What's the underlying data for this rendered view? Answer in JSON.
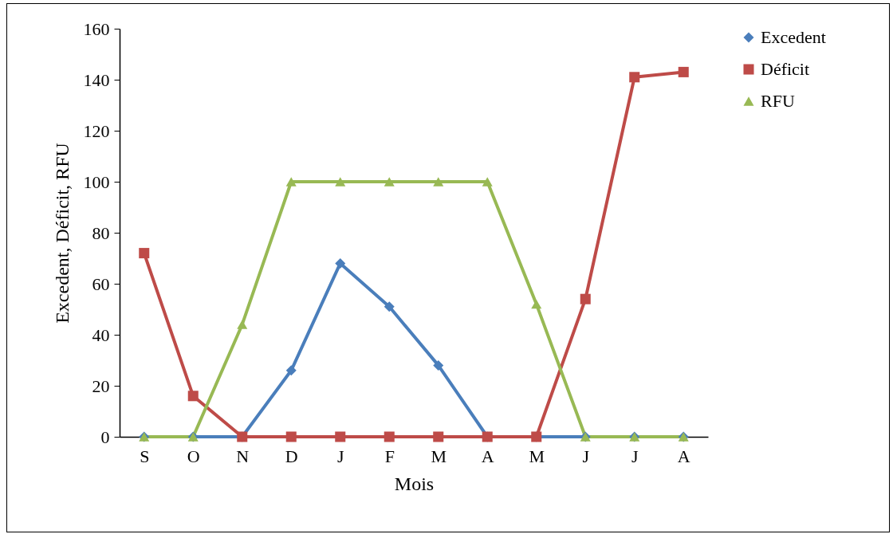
{
  "chart_data": {
    "type": "line",
    "xlabel": "Mois",
    "ylabel": "Excedent, Déficit, RFU",
    "categories": [
      "S",
      "O",
      "N",
      "D",
      "J",
      "F",
      "M",
      "A",
      "M",
      "J",
      "J",
      "A"
    ],
    "ylim": [
      0,
      160
    ],
    "yticks": [
      0,
      20,
      40,
      60,
      80,
      100,
      120,
      140,
      160
    ],
    "grid": false,
    "legend": "right",
    "line_style": "solid",
    "series": [
      {
        "name": "Excedent",
        "color": "#4a7ebb",
        "marker": "diamond",
        "values": [
          0,
          0,
          0,
          26,
          68,
          51,
          28,
          0,
          0,
          0,
          0,
          0
        ]
      },
      {
        "name": "Déficit",
        "color": "#be4b48",
        "marker": "square",
        "values": [
          72,
          16,
          0,
          0,
          0,
          0,
          0,
          0,
          0,
          54,
          141,
          143
        ]
      },
      {
        "name": "RFU",
        "color": "#98b954",
        "marker": "triangle",
        "values": [
          0,
          0,
          44,
          100,
          100,
          100,
          100,
          100,
          52,
          0,
          0,
          0
        ]
      }
    ]
  }
}
